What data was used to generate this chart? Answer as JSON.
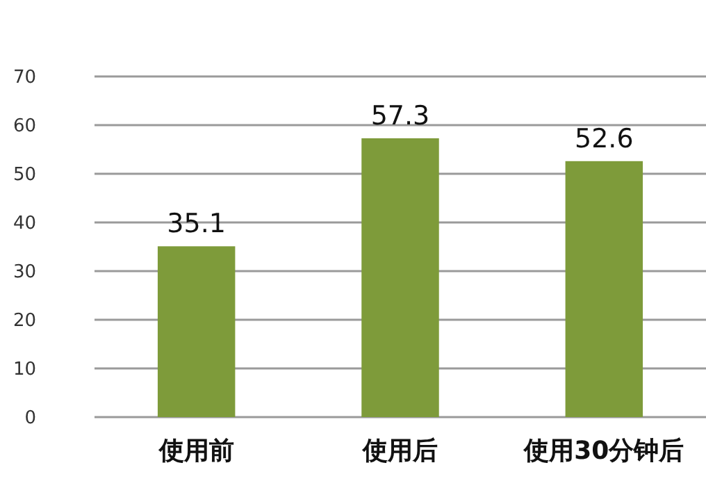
{
  "chart_data": {
    "type": "bar",
    "categories": [
      "使用前",
      "使用后",
      "使用30分钟后"
    ],
    "values": [
      35.1,
      57.3,
      52.6
    ],
    "color": "#7e9b3a",
    "ylim": [
      0,
      70
    ],
    "yticks": [
      0,
      10,
      20,
      30,
      40,
      50,
      60,
      70
    ],
    "grid": "y",
    "data_labels": true
  }
}
